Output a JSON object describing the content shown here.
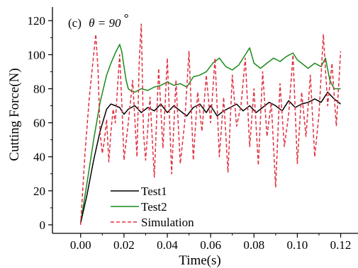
{
  "chart_data": {
    "type": "line",
    "panel_label": "(c)",
    "panel_theta": "θ = 90",
    "panel_degree": "°",
    "xlabel": "Time(s)",
    "ylabel": "Cutting Force(N)",
    "xlim": [
      -0.013,
      0.128
    ],
    "ylim": [
      -5,
      128
    ],
    "xticks": [
      0.0,
      0.02,
      0.04,
      0.06,
      0.08,
      0.1,
      0.12
    ],
    "xtick_labels": [
      "0.00",
      "0.02",
      "0.04",
      "0.06",
      "0.08",
      "0.10",
      "0.12"
    ],
    "yticks": [
      0,
      20,
      40,
      60,
      80,
      100,
      120
    ],
    "ytick_labels": [
      "0",
      "20",
      "40",
      "60",
      "80",
      "100",
      "120"
    ],
    "grid": false,
    "legend_position": "bottom-left",
    "series": [
      {
        "name": "Test1",
        "color": "#000000",
        "style": "solid",
        "x": [
          0.0,
          0.003,
          0.006,
          0.009,
          0.012,
          0.014,
          0.016,
          0.018,
          0.02,
          0.022,
          0.025,
          0.028,
          0.031,
          0.034,
          0.037,
          0.04,
          0.043,
          0.046,
          0.049,
          0.052,
          0.055,
          0.058,
          0.06,
          0.063,
          0.066,
          0.069,
          0.072,
          0.075,
          0.078,
          0.081,
          0.084,
          0.087,
          0.09,
          0.093,
          0.096,
          0.099,
          0.102,
          0.105,
          0.108,
          0.111,
          0.114,
          0.117,
          0.12
        ],
        "y": [
          1,
          18,
          38,
          55,
          68,
          71,
          70,
          69,
          65,
          68,
          70,
          66,
          69,
          67,
          71,
          66,
          70,
          67,
          64,
          69,
          71,
          66,
          70,
          64,
          67,
          69,
          71,
          67,
          70,
          66,
          69,
          72,
          70,
          67,
          73,
          69,
          71,
          72,
          74,
          72,
          78,
          74,
          71
        ]
      },
      {
        "name": "Test2",
        "color": "#1a8a1a",
        "style": "solid",
        "x": [
          0.0,
          0.003,
          0.006,
          0.009,
          0.012,
          0.014,
          0.016,
          0.018,
          0.019,
          0.02,
          0.021,
          0.022,
          0.023,
          0.025,
          0.028,
          0.031,
          0.034,
          0.037,
          0.04,
          0.043,
          0.046,
          0.049,
          0.052,
          0.055,
          0.058,
          0.061,
          0.064,
          0.067,
          0.07,
          0.073,
          0.076,
          0.078,
          0.08,
          0.083,
          0.086,
          0.089,
          0.092,
          0.095,
          0.098,
          0.1,
          0.102,
          0.105,
          0.108,
          0.111,
          0.113,
          0.115,
          0.117,
          0.12
        ],
        "y": [
          1,
          25,
          50,
          72,
          88,
          95,
          101,
          106,
          102,
          93,
          85,
          80,
          79,
          78,
          80,
          79,
          81,
          82,
          84,
          82,
          83,
          81,
          87,
          88,
          90,
          95,
          98,
          93,
          91,
          94,
          100,
          104,
          95,
          92,
          95,
          98,
          96,
          99,
          101,
          97,
          95,
          92,
          95,
          93,
          98,
          85,
          80,
          80
        ]
      },
      {
        "name": "Simulation",
        "color": "#e03040",
        "style": "dashed",
        "x": [
          0.0,
          0.002,
          0.004,
          0.006,
          0.007,
          0.008,
          0.009,
          0.01,
          0.011,
          0.012,
          0.013,
          0.014,
          0.015,
          0.016,
          0.018,
          0.019,
          0.02,
          0.022,
          0.024,
          0.026,
          0.027,
          0.028,
          0.029,
          0.03,
          0.032,
          0.034,
          0.036,
          0.038,
          0.04,
          0.042,
          0.044,
          0.046,
          0.048,
          0.05,
          0.052,
          0.054,
          0.056,
          0.058,
          0.06,
          0.062,
          0.064,
          0.066,
          0.068,
          0.07,
          0.072,
          0.074,
          0.076,
          0.078,
          0.08,
          0.082,
          0.084,
          0.086,
          0.088,
          0.09,
          0.092,
          0.094,
          0.096,
          0.098,
          0.1,
          0.102,
          0.104,
          0.106,
          0.108,
          0.11,
          0.112,
          0.114,
          0.116,
          0.118,
          0.12
        ],
        "y": [
          0,
          42,
          75,
          100,
          112,
          92,
          54,
          42,
          50,
          62,
          37,
          55,
          68,
          60,
          100,
          72,
          38,
          60,
          85,
          40,
          95,
          118,
          54,
          38,
          75,
          28,
          92,
          45,
          98,
          30,
          85,
          36,
          60,
          102,
          38,
          78,
          55,
          88,
          60,
          98,
          40,
          75,
          31,
          88,
          58,
          70,
          98,
          46,
          80,
          35,
          90,
          52,
          72,
          22,
          83,
          46,
          65,
          100,
          36,
          78,
          52,
          88,
          40,
          65,
          112,
          70,
          95,
          58,
          102
        ]
      }
    ]
  }
}
